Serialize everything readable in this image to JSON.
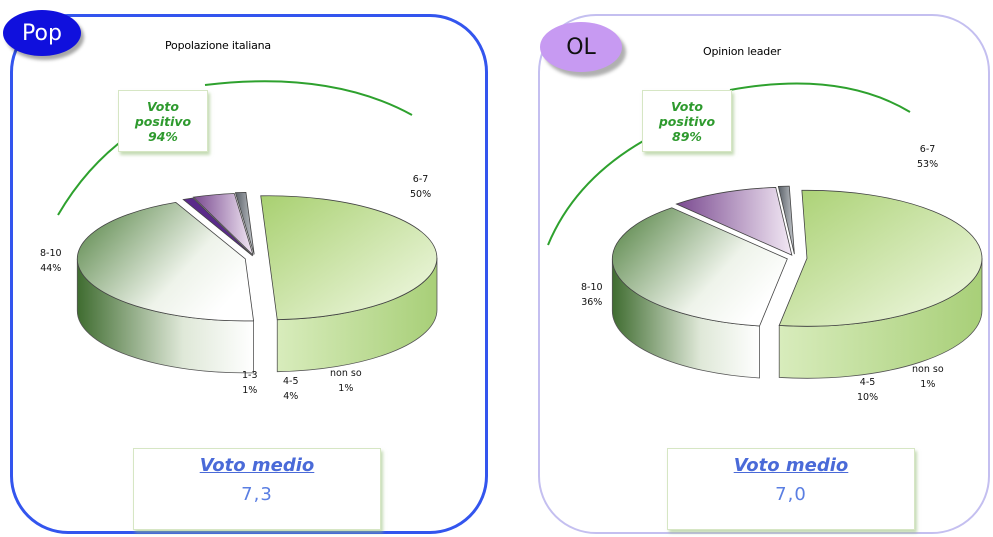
{
  "panels": {
    "pop": {
      "badge": "Pop",
      "title": "Popolazione italiana",
      "callout": {
        "line1": "Voto",
        "line2": "positivo",
        "line3": "94%"
      },
      "summary": {
        "title": "Voto medio",
        "value": "7,3"
      }
    },
    "ol": {
      "badge": "OL",
      "title": "Opinion leader",
      "callout": {
        "line1": "Voto",
        "line2": "positivo",
        "line3": "89%"
      },
      "summary": {
        "title": "Voto medio",
        "value": "7,0"
      }
    }
  },
  "chart_data": [
    {
      "type": "pie",
      "title": "Popolazione italiana",
      "slices": [
        {
          "label": "6-7",
          "value": 50,
          "text": "50%",
          "color": "#b7d98a"
        },
        {
          "label": "8-10",
          "value": 44,
          "text": "44%",
          "color": "#6e9a5a"
        },
        {
          "label": "1-3",
          "value": 1,
          "text": "1%",
          "color": "#5a2a8a"
        },
        {
          "label": "4-5",
          "value": 4,
          "text": "4%",
          "color": "#b18bbf"
        },
        {
          "label": "non so",
          "value": 1,
          "text": "1%",
          "color": "#9aa0a6"
        }
      ]
    },
    {
      "type": "pie",
      "title": "Opinion leader",
      "slices": [
        {
          "label": "6-7",
          "value": 53,
          "text": "53%",
          "color": "#b7d98a"
        },
        {
          "label": "8-10",
          "value": 36,
          "text": "36%",
          "color": "#6e9a5a"
        },
        {
          "label": "4-5",
          "value": 10,
          "text": "10%",
          "color": "#a77fb6"
        },
        {
          "label": "non so",
          "value": 1,
          "text": "1%",
          "color": "#9aa0a6"
        }
      ]
    }
  ]
}
